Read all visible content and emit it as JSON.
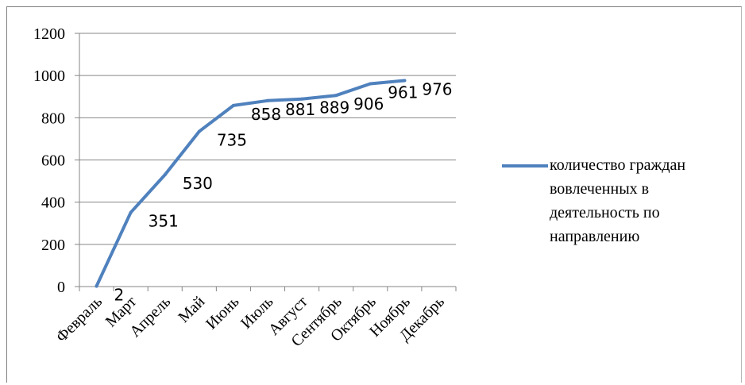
{
  "chart_data": {
    "type": "line",
    "title": "",
    "xlabel": "",
    "ylabel": "",
    "categories": [
      "Февраль",
      "Март",
      "Апрель",
      "Май",
      "Июнь",
      "Июль",
      "Август",
      "Сентябрь",
      "Октябрь",
      "Ноябрь",
      "Декабрь"
    ],
    "series": [
      {
        "name": "количество граждан\nвовлеченных в\nдеятельность по\nнаправлению",
        "values": [
          2,
          351,
          530,
          735,
          858,
          881,
          889,
          906,
          961,
          976,
          null
        ],
        "data_labels": [
          "2",
          "351",
          "530",
          "735",
          "858",
          "881",
          "889",
          "906",
          "961",
          "976"
        ],
        "color": "#4f81bd"
      }
    ],
    "ylim": [
      0,
      1200
    ],
    "yticks": [
      "0",
      "200",
      "400",
      "600",
      "800",
      "1000",
      "1200"
    ],
    "grid": true,
    "legend_position": "right"
  }
}
